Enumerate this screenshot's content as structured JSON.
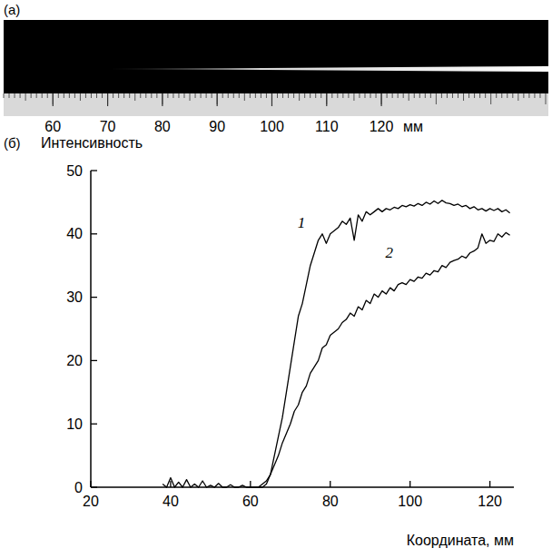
{
  "chart_data": [
    {
      "type": "image",
      "title": "(a)",
      "xlim": [
        51,
        150.5
      ],
      "xticks": [
        60,
        70,
        80,
        90,
        100,
        110,
        120
      ],
      "xlabel": "мм",
      "streak_x": [
        70,
        150.5
      ]
    },
    {
      "type": "line",
      "title": "(б)",
      "ylabel": "Интенсивность",
      "xlabel": "Координата, мм",
      "xlim": [
        20,
        126
      ],
      "ylim": [
        0,
        50
      ],
      "xticks": [
        20,
        40,
        60,
        80,
        100,
        120
      ],
      "yticks": [
        0,
        10,
        20,
        30,
        40,
        50
      ],
      "x": [
        38,
        39,
        40,
        41,
        42,
        43,
        44,
        45,
        46,
        47,
        48,
        49,
        50,
        51,
        52,
        53,
        54,
        55,
        56,
        57,
        58,
        59,
        60,
        61,
        62,
        63,
        64,
        65,
        66,
        67,
        68,
        69,
        70,
        71,
        72,
        73,
        74,
        75,
        76,
        77,
        78,
        79,
        80,
        81,
        82,
        83,
        84,
        85,
        86,
        87,
        88,
        89,
        90,
        91,
        92,
        93,
        94,
        95,
        96,
        97,
        98,
        99,
        100,
        101,
        102,
        103,
        104,
        105,
        106,
        107,
        108,
        109,
        110,
        111,
        112,
        113,
        114,
        115,
        116,
        117,
        118,
        119,
        120,
        121,
        122,
        123,
        124,
        125
      ],
      "series": [
        {
          "name": "1",
          "color": "#000000",
          "values": [
            0.5,
            0,
            1.5,
            0,
            0.8,
            0,
            1.2,
            0,
            0.5,
            0,
            1,
            0,
            0.3,
            0,
            0.6,
            0,
            0,
            0.4,
            0,
            0,
            0.3,
            0,
            0,
            0,
            0,
            0,
            0.5,
            2,
            5,
            8,
            11,
            15,
            19,
            23,
            27,
            29,
            32,
            35,
            37,
            39,
            40,
            38.5,
            40,
            40.5,
            41,
            42,
            41.5,
            42.5,
            39,
            43,
            42,
            43.5,
            43,
            43.5,
            44,
            43.5,
            44,
            43.8,
            44.2,
            44,
            44.5,
            44.3,
            44.6,
            44.4,
            44.8,
            44.5,
            45,
            44.7,
            45.2,
            44.8,
            45.3,
            44.9,
            44.8,
            44.5,
            44.7,
            44.3,
            44.5,
            44,
            44.3,
            43.8,
            44,
            43.6,
            44,
            43.7,
            44,
            43.5,
            43.8,
            43.3
          ]
        },
        {
          "name": "2",
          "color": "#000000",
          "values": [
            null,
            null,
            null,
            null,
            null,
            null,
            null,
            null,
            null,
            null,
            null,
            null,
            null,
            null,
            null,
            null,
            null,
            null,
            null,
            null,
            null,
            null,
            null,
            null,
            0,
            0.5,
            1,
            2,
            3.5,
            5,
            7,
            8.5,
            10,
            12,
            13,
            15,
            16,
            18,
            19,
            20,
            22,
            22.5,
            24,
            24.5,
            25,
            26,
            26.5,
            27.5,
            27,
            28.5,
            28,
            29.5,
            29,
            30.5,
            30,
            31,
            30.5,
            31.5,
            31,
            32,
            32.3,
            32,
            32.8,
            32.5,
            33.2,
            33,
            33.8,
            33.5,
            34.2,
            34,
            35,
            34.7,
            35.5,
            35.8,
            36,
            36.5,
            36.2,
            37,
            37.3,
            37.8,
            40,
            38.5,
            39,
            38.8,
            40,
            39.5,
            40.2,
            39.8
          ]
        }
      ]
    }
  ]
}
